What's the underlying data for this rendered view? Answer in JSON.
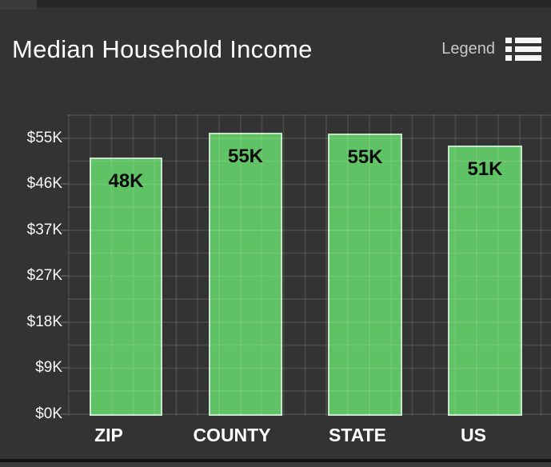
{
  "header": {
    "title": "Median Household Income",
    "legend_label": "Legend"
  },
  "chart_data": {
    "type": "bar",
    "title": "Median Household Income",
    "categories": [
      "ZIP",
      "COUNTY",
      "STATE",
      "US"
    ],
    "values": [
      48000,
      55000,
      55000,
      51000
    ],
    "bar_labels": [
      "48K",
      "55K",
      "55K",
      "51K"
    ],
    "y_tick_labels": [
      "$55K",
      "$46K",
      "$37K",
      "$27K",
      "$18K",
      "$9K",
      "$0K"
    ],
    "ylim": [
      0,
      55000
    ],
    "xlabel": "",
    "ylabel": "",
    "grid": true,
    "legend_position": "top-right",
    "colors": {
      "background": "#333333",
      "bar_fill": "#5fc264",
      "bar_border": "#c6e6c8",
      "bar_label_text": "#0b0b0b",
      "grid_line": "#4a4a4a",
      "axis_text": "#ffffff",
      "title_text": "#fcfcfc",
      "legend_text": "#c9c9c9"
    }
  }
}
